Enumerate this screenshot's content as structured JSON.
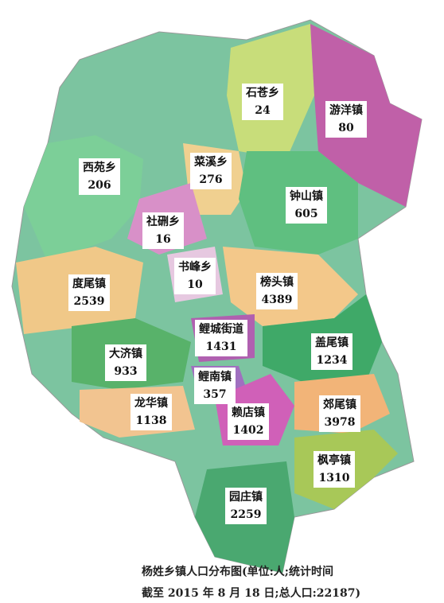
{
  "regions": [
    {
      "name": "石苍乡",
      "population": 24
    },
    {
      "name": "游洋镇",
      "population": 80
    },
    {
      "name": "西苑乡",
      "population": 206
    },
    {
      "name": "菜溪乡",
      "population": 276
    },
    {
      "name": "钟山镇",
      "population": 605
    },
    {
      "name": "社硎乡",
      "population": 16
    },
    {
      "name": "书峰乡",
      "population": 10
    },
    {
      "name": "度尾镇",
      "population": 2539
    },
    {
      "name": "榜头镇",
      "population": 4389
    },
    {
      "name": "鲤城街道",
      "population": 1431
    },
    {
      "name": "盖尾镇",
      "population": 1234
    },
    {
      "name": "大济镇",
      "population": 933
    },
    {
      "name": "鲤南镇",
      "population": 357
    },
    {
      "name": "龙华镇",
      "population": 1138
    },
    {
      "name": "赖店镇",
      "population": 1402
    },
    {
      "name": "郊尾镇",
      "population": 3978
    },
    {
      "name": "枫亭镇",
      "population": 1310
    },
    {
      "name": "园庄镇",
      "population": 2259
    }
  ],
  "caption": {
    "line1": "杨姓乡镇人口分布图(单位:人;统计时间",
    "line2": "截至 2015 年 8 月 18 日;总人口:22187)"
  }
}
